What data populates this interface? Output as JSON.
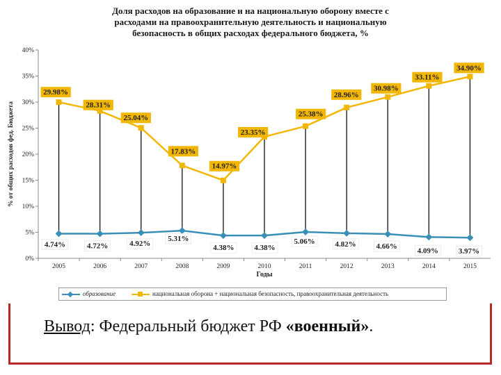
{
  "chart_data": {
    "type": "line",
    "title": "Доля расходов на образование и на национальную оборону вместе с расходами на правоохранительную деятельность и национальную безопасность в общих расходах федерального бюджета, %",
    "title_lines": [
      "Доля расходов на образование и на национальную оборону вместе с",
      "расходами на правоохранительную деятельность и национальную",
      "безопасность в общих расходах федерального бюджета, %"
    ],
    "xlabel": "Годы",
    "ylabel": "% от общих расходов фед. Бюджета",
    "ylim": [
      0,
      40
    ],
    "yticks": [
      "0%",
      "5%",
      "10%",
      "15%",
      "20%",
      "25%",
      "30%",
      "35%",
      "40%"
    ],
    "categories": [
      "2005",
      "2006",
      "2007",
      "2008",
      "2009",
      "2010",
      "2011",
      "2012",
      "2013",
      "2014",
      "2015"
    ],
    "series": [
      {
        "name": "образование",
        "color": "#3a8fb7",
        "marker": "diamond",
        "values": [
          4.74,
          4.72,
          4.92,
          5.31,
          4.38,
          4.38,
          5.06,
          4.82,
          4.66,
          4.09,
          3.97
        ],
        "labels": [
          "4.74%",
          "4.72%",
          "4.92%",
          "5.31%",
          "4.38%",
          "4.38%",
          "5.06%",
          "4.82%",
          "4.66%",
          "4.09%",
          "3.97%"
        ]
      },
      {
        "name": "национальная оборона + национальная безопасность, правоохранительная деятельность",
        "color": "#f2b705",
        "marker": "square",
        "values": [
          29.98,
          28.31,
          25.04,
          17.83,
          14.97,
          23.35,
          25.38,
          28.96,
          30.98,
          33.11,
          34.9
        ],
        "labels": [
          "29.98%",
          "28.31%",
          "25.04%",
          "17.83%",
          "14.97%",
          "23.35%",
          "25.38%",
          "28.96%",
          "30.98%",
          "33.11%",
          "34.90%"
        ]
      }
    ],
    "grid": false,
    "legend_position": "bottom"
  },
  "conclusion": {
    "label": "Вывод",
    "sep": ": ",
    "text": "Федеральный бюджет РФ ",
    "emphasis": "«военный»",
    "end": "."
  },
  "colors": {
    "frame_accent": "#b52a2a",
    "edu": "#3a8fb7",
    "def": "#f2b705"
  }
}
